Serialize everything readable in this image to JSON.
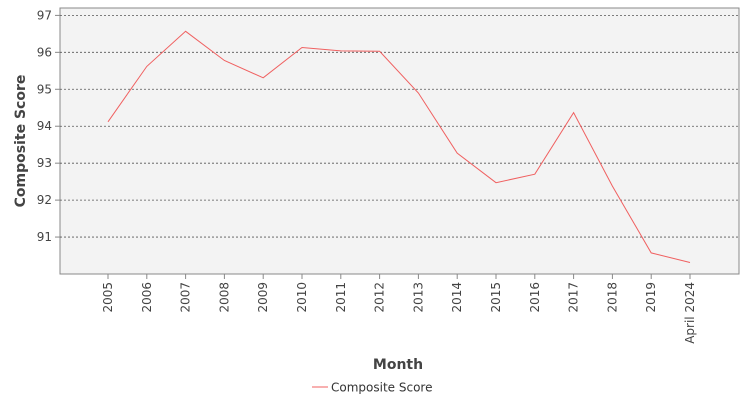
{
  "chart_data": {
    "type": "line",
    "categories": [
      "2005",
      "2006",
      "2007",
      "2008",
      "2009",
      "2010",
      "2011",
      "2012",
      "2013",
      "2014",
      "2015",
      "2016",
      "2017",
      "2018",
      "2019",
      "April 2024"
    ],
    "series": [
      {
        "name": "Composite Score",
        "color": "#f06060",
        "values": [
          94.12,
          95.62,
          96.57,
          95.78,
          95.31,
          96.13,
          96.04,
          96.03,
          94.9,
          93.27,
          92.47,
          92.7,
          94.37,
          92.38,
          90.57,
          90.31
        ]
      }
    ],
    "xlabel": "Month",
    "ylabel": "Composite Score",
    "ylim": [
      90.0,
      97.2
    ],
    "yticks": [
      91,
      92,
      93,
      94,
      95,
      96,
      97
    ],
    "grid": true,
    "legend_position": "bottom-center",
    "plot_background": "#f3f3f3"
  }
}
